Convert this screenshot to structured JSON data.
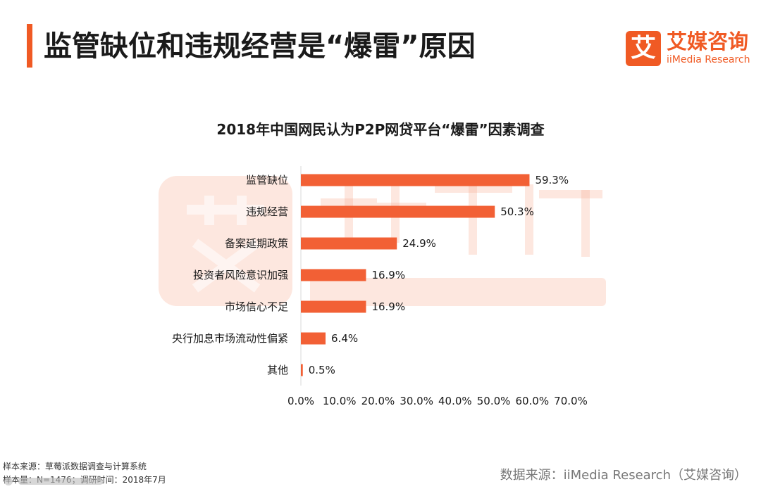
{
  "header": {
    "title": "监管缺位和违规经营是“爆雷”原因"
  },
  "logo": {
    "mark": "艾",
    "name_cn": "艾媒咨询",
    "name_en": "iiMedia Research"
  },
  "chart_data": {
    "type": "bar",
    "orientation": "horizontal",
    "title": "2018年中国网民认为P2P网贷平台“爆雷”因素调查",
    "categories": [
      "监管缺位",
      "违规经营",
      "备案延期政策",
      "投资者风险意识加强",
      "市场信心不足",
      "央行加息市场流动性偏紧",
      "其他"
    ],
    "values": [
      59.3,
      50.3,
      24.9,
      16.9,
      16.9,
      6.4,
      0.5
    ],
    "value_labels": [
      "59.3%",
      "50.3%",
      "24.9%",
      "16.9%",
      "16.9%",
      "6.4%",
      "0.5%"
    ],
    "xlim": [
      0,
      70
    ],
    "x_ticks": [
      "0.0%",
      "10.0%",
      "20.0%",
      "30.0%",
      "40.0%",
      "50.0%",
      "60.0%",
      "70.0%"
    ],
    "xlabel": "",
    "ylabel": "",
    "grid": false,
    "bar_color": "#f26035"
  },
  "footer": {
    "sample_source": "样本来源：草莓派数据调查与计算系统",
    "sample_info": "样本量：N=1476；调研时间：2018年7月",
    "data_source": "数据来源：iiMedia Research（艾媒咨询）"
  },
  "watermark_color": "#f7a98c"
}
